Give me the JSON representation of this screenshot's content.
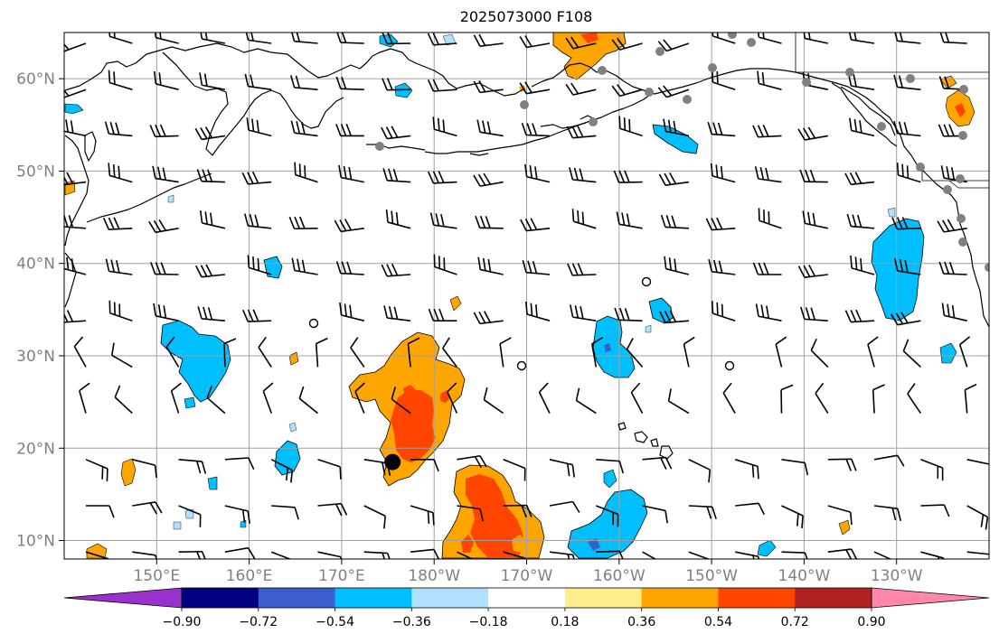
{
  "title": "2025073000 F108",
  "map": {
    "lon_range": [
      140,
      240
    ],
    "lat_range": [
      8,
      65
    ],
    "lat_ticks": [
      {
        "value": 60,
        "label": "60°N"
      },
      {
        "value": 50,
        "label": "50°N"
      },
      {
        "value": 40,
        "label": "40°N"
      },
      {
        "value": 30,
        "label": "30°N"
      },
      {
        "value": 20,
        "label": "20°N"
      },
      {
        "value": 10,
        "label": "10°N"
      }
    ],
    "lon_ticks": [
      {
        "value": 150,
        "label": "150°E"
      },
      {
        "value": 160,
        "label": "160°E"
      },
      {
        "value": 170,
        "label": "170°E"
      },
      {
        "value": 180,
        "label": "180°W"
      },
      {
        "value": 190,
        "label": "170°W"
      },
      {
        "value": 200,
        "label": "160°W"
      },
      {
        "value": 210,
        "label": "150°W"
      },
      {
        "value": 220,
        "label": "140°W"
      },
      {
        "value": 230,
        "label": "130°W"
      }
    ],
    "storm_center": {
      "lon": 175.5,
      "lat": 18.5
    },
    "colors": {
      "coast": "#000000",
      "grid": "#a0a0a0",
      "station": "#808080"
    }
  },
  "colorbar": {
    "colors": [
      "#9932cc",
      "#000080",
      "#3a5fcd",
      "#00bfff",
      "#b0e0ff",
      "#ffffff",
      "#ffec8b",
      "#ffa500",
      "#ff4500",
      "#b22222",
      "#ff88aa"
    ],
    "labels": [
      "−0.90",
      "−0.72",
      "−0.54",
      "−0.36",
      "−0.18",
      "0.18",
      "0.36",
      "0.54",
      "0.72",
      "0.90"
    ]
  }
}
